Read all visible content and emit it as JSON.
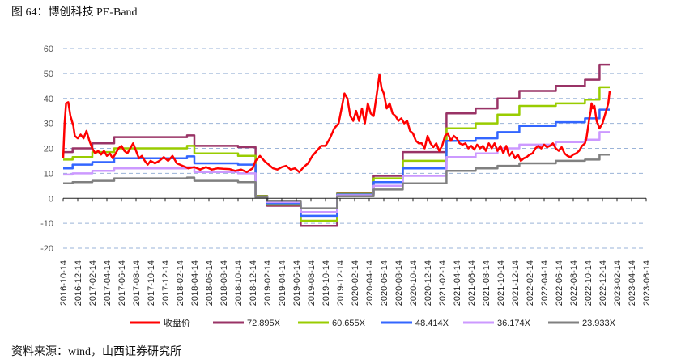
{
  "title": "图 64：博创科技 PE-Band",
  "source": "资料来源：wind，山西证券研究所",
  "chart_data": {
    "type": "line",
    "ylim": [
      -20,
      60
    ],
    "yticks": [
      -20,
      -10,
      0,
      10,
      20,
      30,
      40,
      50,
      60
    ],
    "grid": "horizontal dashed",
    "legend": "bottom",
    "xticks": [
      "2016-10-14",
      "2016-12-14",
      "2017-02-14",
      "2017-04-14",
      "2017-06-14",
      "2017-08-14",
      "2017-10-14",
      "2017-12-14",
      "2018-02-14",
      "2018-04-14",
      "2018-06-14",
      "2018-08-14",
      "2018-10-14",
      "2018-12-14",
      "2019-02-14",
      "2019-04-14",
      "2019-06-14",
      "2019-08-14",
      "2019-10-14",
      "2019-12-14",
      "2020-02-14",
      "2020-04-14",
      "2020-06-14",
      "2020-08-14",
      "2020-10-14",
      "2020-12-14",
      "2021-02-14",
      "2021-04-14",
      "2021-06-14",
      "2021-08-14",
      "2021-10-14",
      "2021-12-14",
      "2022-02-14",
      "2022-04-14",
      "2022-06-14",
      "2022-08-14",
      "2022-10-14",
      "2022-12-14",
      "2023-02-14",
      "2023-04-14",
      "2023-06-14"
    ],
    "series": [
      {
        "name": "收盘价",
        "color": "#ff0000",
        "width": 2.5,
        "points": [
          [
            0,
            16
          ],
          [
            0.1,
            30
          ],
          [
            0.2,
            38
          ],
          [
            0.35,
            38.5
          ],
          [
            0.5,
            33
          ],
          [
            0.7,
            29
          ],
          [
            0.8,
            25
          ],
          [
            1.0,
            24
          ],
          [
            1.2,
            25.5
          ],
          [
            1.4,
            24
          ],
          [
            1.6,
            27
          ],
          [
            1.8,
            23
          ],
          [
            2.0,
            20
          ],
          [
            2.2,
            18
          ],
          [
            2.4,
            19
          ],
          [
            2.6,
            17.5
          ],
          [
            2.8,
            19
          ],
          [
            3.0,
            17
          ],
          [
            3.2,
            18
          ],
          [
            3.4,
            16
          ],
          [
            3.6,
            18
          ],
          [
            3.8,
            20
          ],
          [
            4.0,
            21
          ],
          [
            4.2,
            19
          ],
          [
            4.4,
            18
          ],
          [
            4.6,
            20
          ],
          [
            4.8,
            22
          ],
          [
            5.0,
            19
          ],
          [
            5.2,
            16
          ],
          [
            5.4,
            17
          ],
          [
            5.6,
            15
          ],
          [
            5.8,
            13.5
          ],
          [
            6.0,
            15
          ],
          [
            6.3,
            14
          ],
          [
            6.6,
            15
          ],
          [
            6.9,
            16.5
          ],
          [
            7.2,
            15
          ],
          [
            7.5,
            17
          ],
          [
            7.8,
            14
          ],
          [
            8.2,
            13
          ],
          [
            8.6,
            12
          ],
          [
            9.0,
            12.5
          ],
          [
            9.4,
            11.5
          ],
          [
            9.8,
            12.5
          ],
          [
            10.2,
            11.5
          ],
          [
            10.6,
            12
          ],
          [
            11.0,
            11.8
          ],
          [
            11.4,
            11.7
          ],
          [
            11.8,
            11
          ],
          [
            12.2,
            11.5
          ],
          [
            12.6,
            10.5
          ],
          [
            13.0,
            12
          ],
          [
            13.2,
            15
          ],
          [
            13.5,
            17
          ],
          [
            13.8,
            15
          ],
          [
            14.1,
            13.5
          ],
          [
            14.4,
            12
          ],
          [
            14.7,
            11.5
          ],
          [
            15.0,
            12.5
          ],
          [
            15.3,
            13
          ],
          [
            15.6,
            11.5
          ],
          [
            15.9,
            12
          ],
          [
            16.2,
            10.5
          ],
          [
            16.5,
            12.5
          ],
          [
            16.8,
            14
          ],
          [
            17.1,
            17
          ],
          [
            17.4,
            19
          ],
          [
            17.7,
            21
          ],
          [
            18.0,
            21
          ],
          [
            18.3,
            24
          ],
          [
            18.6,
            28
          ],
          [
            18.9,
            30
          ],
          [
            19.1,
            36
          ],
          [
            19.3,
            42
          ],
          [
            19.5,
            40
          ],
          [
            19.7,
            33
          ],
          [
            19.9,
            31
          ],
          [
            20.1,
            35
          ],
          [
            20.3,
            31
          ],
          [
            20.5,
            36
          ],
          [
            20.7,
            30
          ],
          [
            20.9,
            38
          ],
          [
            21.1,
            34
          ],
          [
            21.3,
            33
          ],
          [
            21.5,
            41
          ],
          [
            21.7,
            49.5
          ],
          [
            21.85,
            44
          ],
          [
            22.0,
            42
          ],
          [
            22.2,
            36
          ],
          [
            22.4,
            38
          ],
          [
            22.6,
            34
          ],
          [
            22.8,
            33
          ],
          [
            23.0,
            31
          ],
          [
            23.2,
            32
          ],
          [
            23.4,
            30
          ],
          [
            23.6,
            31
          ],
          [
            23.8,
            27
          ],
          [
            24.0,
            26
          ],
          [
            24.2,
            23
          ],
          [
            24.4,
            22
          ],
          [
            24.6,
            22
          ],
          [
            24.8,
            20
          ],
          [
            25.0,
            25
          ],
          [
            25.2,
            22
          ],
          [
            25.4,
            20.5
          ],
          [
            25.6,
            22
          ],
          [
            25.8,
            19
          ],
          [
            26.0,
            21
          ],
          [
            26.2,
            25
          ],
          [
            26.4,
            26
          ],
          [
            26.6,
            23
          ],
          [
            26.8,
            25
          ],
          [
            27.0,
            24
          ],
          [
            27.2,
            22
          ],
          [
            27.4,
            21.5
          ],
          [
            27.6,
            22
          ],
          [
            27.8,
            20
          ],
          [
            28.0,
            21
          ],
          [
            28.2,
            19.5
          ],
          [
            28.4,
            21.5
          ],
          [
            28.6,
            20
          ],
          [
            28.8,
            21
          ],
          [
            29.0,
            19
          ],
          [
            29.2,
            22
          ],
          [
            29.4,
            20
          ],
          [
            29.6,
            22
          ],
          [
            29.8,
            19
          ],
          [
            30.0,
            21
          ],
          [
            30.2,
            18
          ],
          [
            30.4,
            21
          ],
          [
            30.6,
            17
          ],
          [
            30.8,
            18.5
          ],
          [
            31.0,
            16
          ],
          [
            31.2,
            17.5
          ],
          [
            31.4,
            15
          ],
          [
            31.6,
            16
          ],
          [
            31.8,
            16.5
          ],
          [
            32.0,
            17.5
          ],
          [
            32.2,
            18
          ],
          [
            32.4,
            20
          ],
          [
            32.6,
            21
          ],
          [
            32.8,
            20
          ],
          [
            33.0,
            21.5
          ],
          [
            33.2,
            20.5
          ],
          [
            33.4,
            21
          ],
          [
            33.6,
            22
          ],
          [
            33.8,
            20
          ],
          [
            34.0,
            19
          ],
          [
            34.2,
            20.5
          ],
          [
            34.4,
            18
          ],
          [
            34.6,
            17
          ],
          [
            34.8,
            16.5
          ],
          [
            35.0,
            17.5
          ],
          [
            35.2,
            18
          ],
          [
            35.4,
            19
          ],
          [
            35.6,
            21
          ],
          [
            35.8,
            22
          ],
          [
            35.9,
            24
          ],
          [
            36.0,
            28
          ],
          [
            36.1,
            32
          ],
          [
            36.2,
            35
          ],
          [
            36.25,
            38
          ],
          [
            36.35,
            36
          ],
          [
            36.45,
            37
          ],
          [
            36.6,
            31
          ],
          [
            36.8,
            28
          ],
          [
            37.0,
            30
          ],
          [
            37.2,
            34
          ],
          [
            37.4,
            38
          ],
          [
            37.5,
            43
          ]
        ]
      },
      {
        "name": "72.895X",
        "color": "#993366",
        "width": 2.5,
        "levels": [
          [
            0,
            0.65,
            18.5
          ],
          [
            0.65,
            2,
            20
          ],
          [
            2,
            3.5,
            22
          ],
          [
            3.5,
            8.5,
            24.5
          ],
          [
            8.5,
            9,
            25.2
          ],
          [
            9,
            12,
            21
          ],
          [
            12,
            13.2,
            20.5
          ],
          [
            13.2,
            14,
            1
          ],
          [
            14,
            16.3,
            -3
          ],
          [
            16.3,
            18.8,
            -11
          ],
          [
            18.8,
            21.3,
            2
          ],
          [
            21.3,
            23.3,
            9
          ],
          [
            23.3,
            26.3,
            18.5
          ],
          [
            26.3,
            28.3,
            34
          ],
          [
            28.3,
            29.8,
            36
          ],
          [
            29.8,
            31.3,
            40
          ],
          [
            31.3,
            33.8,
            43
          ],
          [
            33.8,
            35.8,
            45
          ],
          [
            35.8,
            36.8,
            47.5
          ],
          [
            36.8,
            37.5,
            53.5
          ]
        ]
      },
      {
        "name": "60.655X",
        "color": "#99cc00",
        "width": 2.5,
        "levels": [
          [
            0,
            0.65,
            15.5
          ],
          [
            0.65,
            2,
            16.5
          ],
          [
            2,
            3.5,
            18.5
          ],
          [
            3.5,
            8.5,
            20
          ],
          [
            8.5,
            9,
            21
          ],
          [
            9,
            12,
            18
          ],
          [
            12,
            13.2,
            17
          ],
          [
            13.2,
            14,
            0.9
          ],
          [
            14,
            16.3,
            -2.5
          ],
          [
            16.3,
            18.8,
            -9
          ],
          [
            18.8,
            21.3,
            1.8
          ],
          [
            21.3,
            23.3,
            8
          ],
          [
            23.3,
            26.3,
            15
          ],
          [
            26.3,
            28.3,
            28
          ],
          [
            28.3,
            29.8,
            30
          ],
          [
            29.8,
            31.3,
            33.5
          ],
          [
            31.3,
            33.8,
            37
          ],
          [
            33.8,
            35.8,
            38
          ],
          [
            35.8,
            36.8,
            39.5
          ],
          [
            36.8,
            37.5,
            44.5
          ]
        ]
      },
      {
        "name": "48.414X",
        "color": "#3366ff",
        "width": 2.5,
        "levels": [
          [
            0,
            0.65,
            12
          ],
          [
            0.65,
            2,
            13.5
          ],
          [
            2,
            3.5,
            14.5
          ],
          [
            3.5,
            8.5,
            16
          ],
          [
            8.5,
            9,
            16.8
          ],
          [
            9,
            12,
            14
          ],
          [
            12,
            13.2,
            13.5
          ],
          [
            13.2,
            14,
            0.7
          ],
          [
            14,
            16.3,
            -2
          ],
          [
            16.3,
            18.8,
            -7
          ],
          [
            18.8,
            21.3,
            1.5
          ],
          [
            21.3,
            23.3,
            6.5
          ],
          [
            23.3,
            26.3,
            12
          ],
          [
            26.3,
            28.3,
            23
          ],
          [
            28.3,
            29.8,
            24
          ],
          [
            29.8,
            31.3,
            26.5
          ],
          [
            31.3,
            33.8,
            29
          ],
          [
            33.8,
            35.8,
            30.5
          ],
          [
            35.8,
            36.8,
            32
          ],
          [
            36.8,
            37.5,
            35.5
          ]
        ]
      },
      {
        "name": "36.174X",
        "color": "#cc99ff",
        "width": 2.5,
        "levels": [
          [
            0,
            0.65,
            9.5
          ],
          [
            0.65,
            2,
            10
          ],
          [
            2,
            3.5,
            11
          ],
          [
            3.5,
            8.5,
            12
          ],
          [
            8.5,
            9,
            12.5
          ],
          [
            9,
            12,
            10.5
          ],
          [
            12,
            13.2,
            10
          ],
          [
            13.2,
            14,
            0.5
          ],
          [
            14,
            16.3,
            -1.5
          ],
          [
            16.3,
            18.8,
            -5.5
          ],
          [
            18.8,
            21.3,
            1.2
          ],
          [
            21.3,
            23.3,
            5
          ],
          [
            23.3,
            26.3,
            9
          ],
          [
            26.3,
            28.3,
            16.5
          ],
          [
            28.3,
            29.8,
            18
          ],
          [
            29.8,
            31.3,
            20
          ],
          [
            31.3,
            33.8,
            21.5
          ],
          [
            33.8,
            35.8,
            22.5
          ],
          [
            35.8,
            36.8,
            23.5
          ],
          [
            36.8,
            37.5,
            26.5
          ]
        ]
      },
      {
        "name": "23.933X",
        "color": "#808080",
        "width": 2.5,
        "levels": [
          [
            0,
            0.65,
            6
          ],
          [
            0.65,
            2,
            6.5
          ],
          [
            2,
            3.5,
            7
          ],
          [
            3.5,
            8.5,
            8
          ],
          [
            8.5,
            9,
            8.3
          ],
          [
            9,
            12,
            7
          ],
          [
            12,
            13.2,
            6.5
          ],
          [
            13.2,
            14,
            0.3
          ],
          [
            14,
            16.3,
            -1
          ],
          [
            16.3,
            18.8,
            -4
          ],
          [
            18.8,
            21.3,
            0.8
          ],
          [
            21.3,
            23.3,
            3.5
          ],
          [
            23.3,
            26.3,
            6
          ],
          [
            26.3,
            28.3,
            11
          ],
          [
            28.3,
            29.8,
            12
          ],
          [
            29.8,
            31.3,
            13
          ],
          [
            31.3,
            33.8,
            14
          ],
          [
            33.8,
            35.8,
            15
          ],
          [
            35.8,
            36.8,
            15.5
          ],
          [
            36.8,
            37.5,
            17.5
          ]
        ]
      }
    ]
  }
}
